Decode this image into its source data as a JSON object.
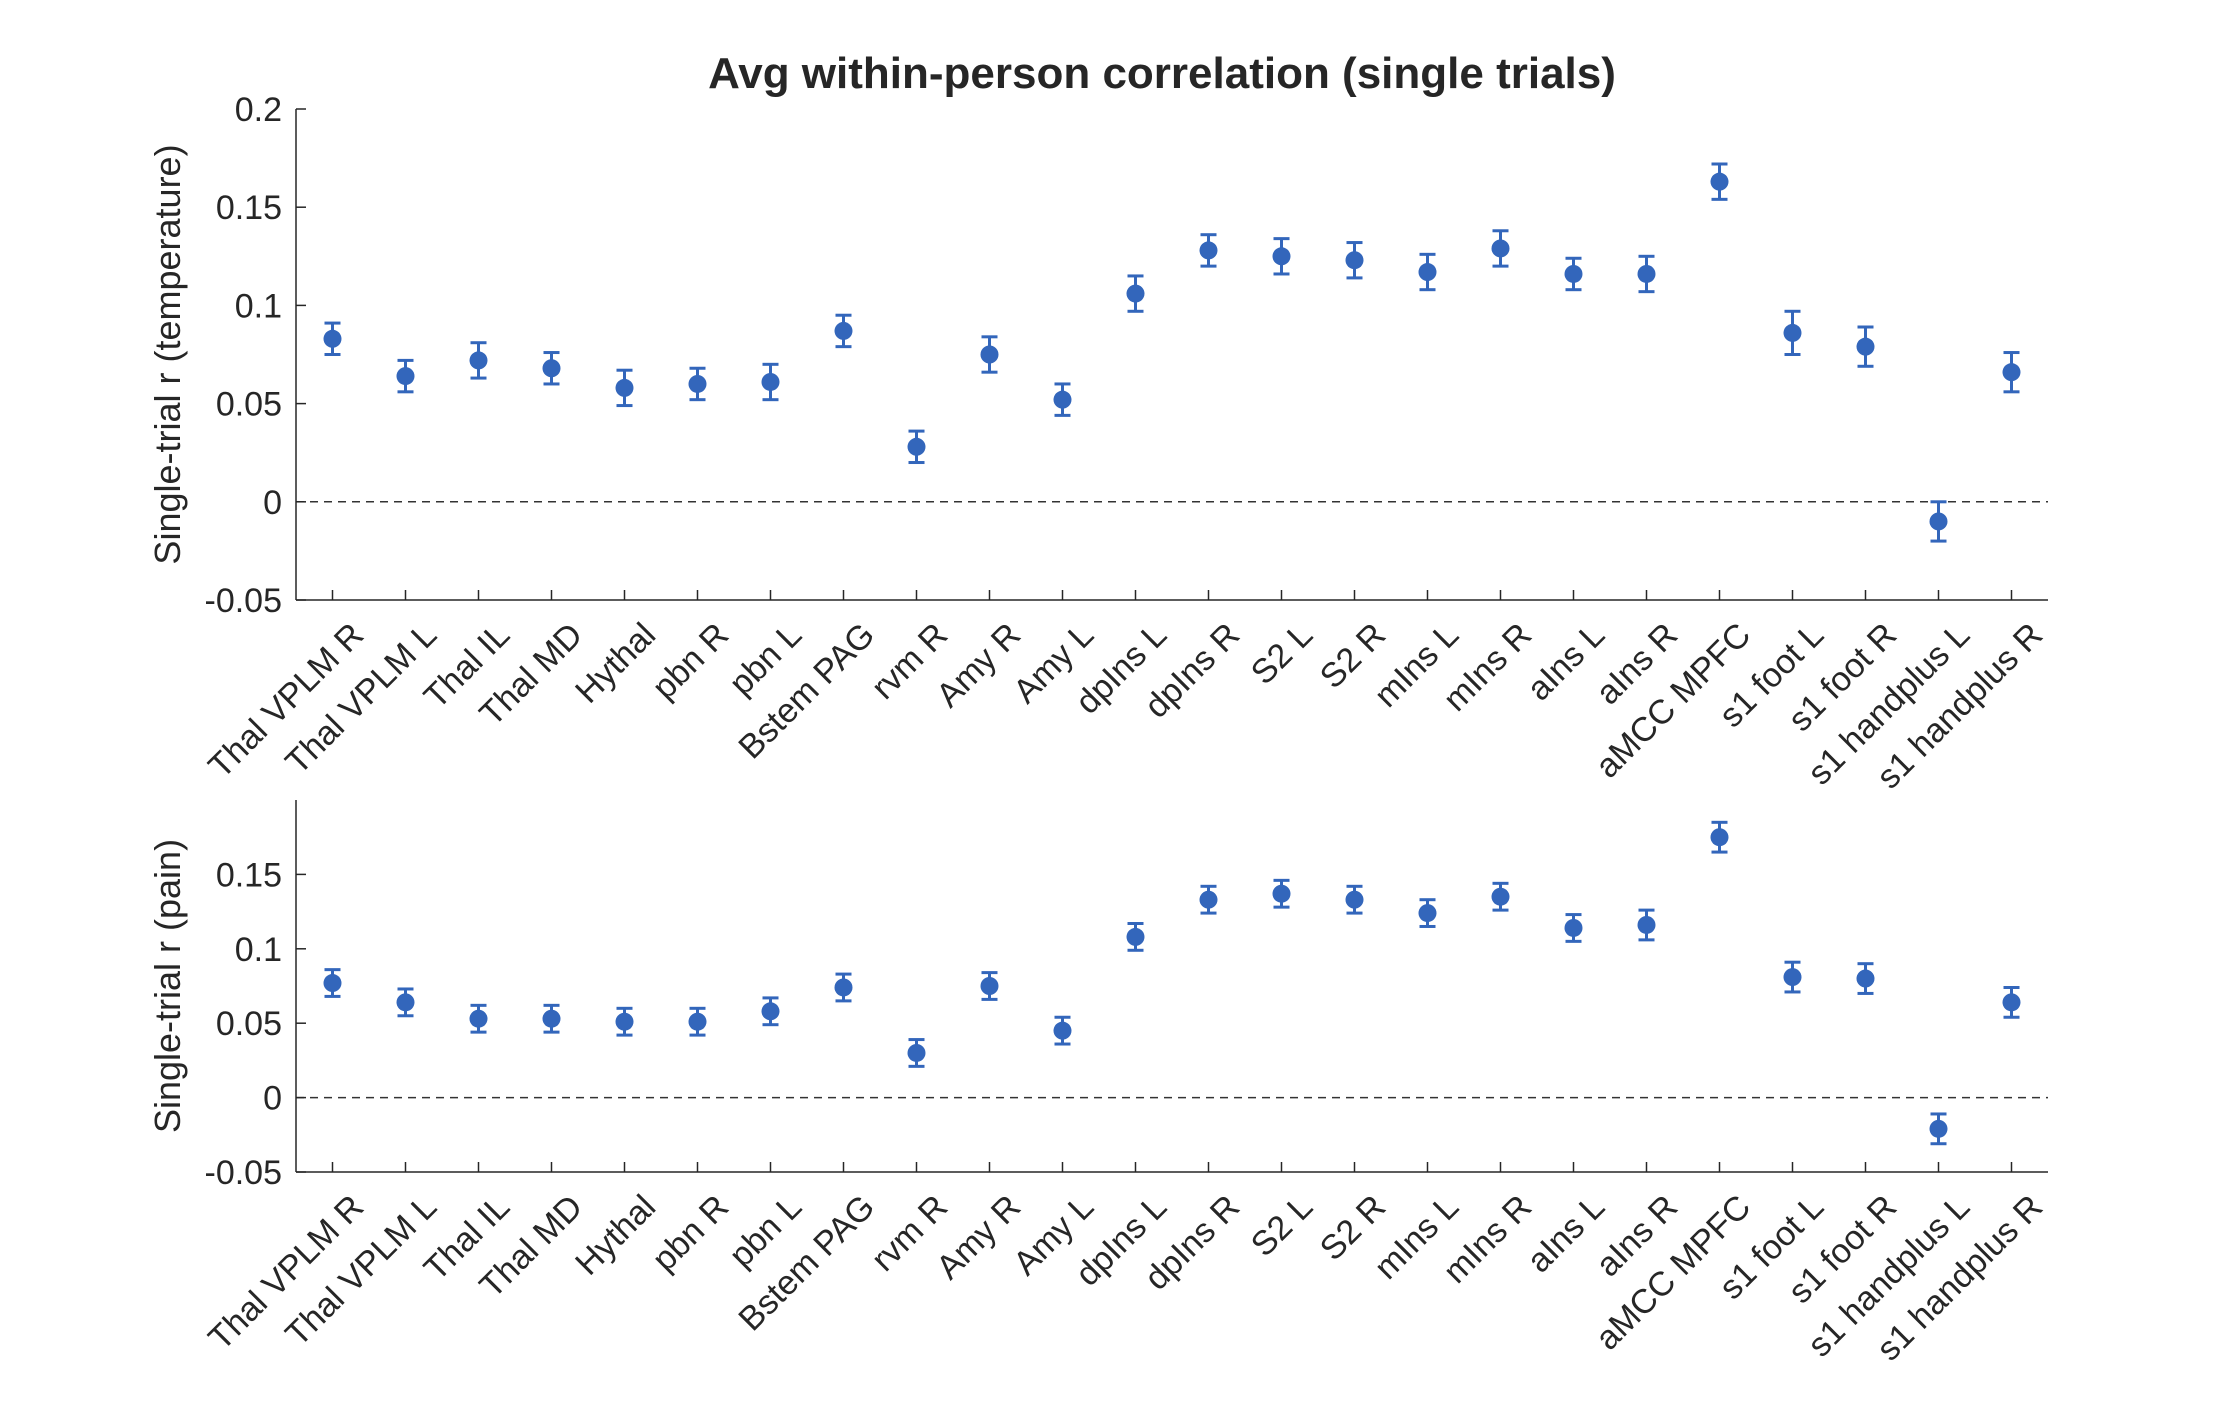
{
  "figure": {
    "title": "Avg within-person correlation (single trials)",
    "marker_color": "#3366BB",
    "zero_line_color": "#333333"
  },
  "chart_data": [
    {
      "type": "scatter",
      "style": "point with error bars",
      "title": "Avg within-person correlation (single trials)",
      "xlabel": "",
      "ylabel": "Single-trial r (temperature)",
      "ylim": [
        -0.05,
        0.2
      ],
      "yticks": [
        -0.05,
        0,
        0.05,
        0.1,
        0.15,
        0.2
      ],
      "ytick_labels": [
        "-0.05",
        "0",
        "0.05",
        "0.1",
        "0.15",
        "0.2"
      ],
      "zero_line": "dashed",
      "categories": [
        "Thal VPLM R",
        "Thal VPLM L",
        "Thal IL",
        "Thal MD",
        "Hythal",
        "pbn R",
        "pbn L",
        "Bstem PAG",
        "rvm R",
        "Amy R",
        "Amy L",
        "dpIns L",
        "dpIns R",
        "S2 L",
        "S2 R",
        "mIns L",
        "mIns R",
        "aIns L",
        "aIns R",
        "aMCC MPFC",
        "s1 foot L",
        "s1 foot R",
        "s1 handplus L",
        "s1 handplus R"
      ],
      "values": [
        0.083,
        0.064,
        0.072,
        0.068,
        0.058,
        0.06,
        0.061,
        0.087,
        0.028,
        0.075,
        0.052,
        0.106,
        0.128,
        0.125,
        0.123,
        0.117,
        0.129,
        0.116,
        0.116,
        0.163,
        0.086,
        0.079,
        -0.01,
        0.066
      ],
      "errors": [
        0.008,
        0.008,
        0.009,
        0.008,
        0.009,
        0.008,
        0.009,
        0.008,
        0.008,
        0.009,
        0.008,
        0.009,
        0.008,
        0.009,
        0.009,
        0.009,
        0.009,
        0.008,
        0.009,
        0.009,
        0.011,
        0.01,
        0.01,
        0.01
      ]
    },
    {
      "type": "scatter",
      "style": "point with error bars",
      "xlabel": "",
      "ylabel": "Single-trial r (pain)",
      "ylim": [
        -0.05,
        0.2
      ],
      "yticks": [
        -0.05,
        0,
        0.05,
        0.1,
        0.15
      ],
      "ytick_labels": [
        "-0.05",
        "0",
        "0.05",
        "0.1",
        "0.15"
      ],
      "zero_line": "dashed",
      "categories": [
        "Thal VPLM R",
        "Thal VPLM L",
        "Thal IL",
        "Thal MD",
        "Hythal",
        "pbn R",
        "pbn L",
        "Bstem PAG",
        "rvm R",
        "Amy R",
        "Amy L",
        "dpIns L",
        "dpIns R",
        "S2 L",
        "S2 R",
        "mIns L",
        "mIns R",
        "aIns L",
        "aIns R",
        "aMCC MPFC",
        "s1 foot L",
        "s1 foot R",
        "s1 handplus L",
        "s1 handplus R"
      ],
      "values": [
        0.077,
        0.064,
        0.053,
        0.053,
        0.051,
        0.051,
        0.058,
        0.074,
        0.03,
        0.075,
        0.045,
        0.108,
        0.133,
        0.137,
        0.133,
        0.124,
        0.135,
        0.114,
        0.116,
        0.175,
        0.081,
        0.08,
        -0.021,
        0.064
      ],
      "errors": [
        0.009,
        0.009,
        0.009,
        0.009,
        0.009,
        0.009,
        0.009,
        0.009,
        0.009,
        0.009,
        0.009,
        0.009,
        0.009,
        0.009,
        0.009,
        0.009,
        0.009,
        0.009,
        0.01,
        0.01,
        0.01,
        0.01,
        0.01,
        0.01
      ]
    }
  ]
}
